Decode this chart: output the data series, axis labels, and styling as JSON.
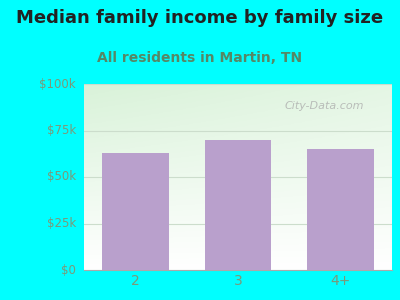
{
  "title": "Median family income by family size",
  "subtitle": "All residents in Martin, TN",
  "categories": [
    "2",
    "3",
    "4+"
  ],
  "values": [
    63000,
    70000,
    65000
  ],
  "bar_color": "#b9a0cc",
  "background_color": "#00ffff",
  "yticks": [
    0,
    25000,
    50000,
    75000,
    100000
  ],
  "ytick_labels": [
    "$0",
    "$25k",
    "$50k",
    "$75k",
    "$100k"
  ],
  "ylim": [
    0,
    100000
  ],
  "title_fontsize": 13,
  "subtitle_fontsize": 10,
  "tick_color": "#7a9a7a",
  "watermark": "City-Data.com",
  "title_color": "#222222",
  "subtitle_color": "#558866"
}
